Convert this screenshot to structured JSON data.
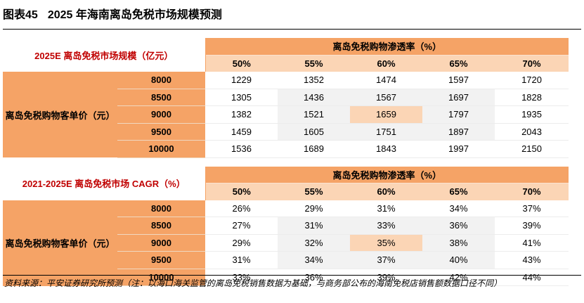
{
  "title": {
    "fig": "图表45",
    "text": "2025 年海南离岛免税市场规模预测"
  },
  "section1": {
    "label": "2025E 离岛免税市场规模（亿元）",
    "header": "离岛免税购物渗透率（%）",
    "cols": [
      "50%",
      "55%",
      "60%",
      "65%",
      "70%"
    ],
    "row_label": "离岛免税购物客单价（元）",
    "rows": [
      {
        "price": "8000",
        "values": [
          "1229",
          "1352",
          "1474",
          "1597",
          "1720"
        ]
      },
      {
        "price": "8500",
        "values": [
          "1305",
          "1436",
          "1567",
          "1697",
          "1828"
        ]
      },
      {
        "price": "9000",
        "values": [
          "1382",
          "1521",
          "1659",
          "1797",
          "1935"
        ]
      },
      {
        "price": "9500",
        "values": [
          "1459",
          "1605",
          "1751",
          "1897",
          "2043"
        ]
      },
      {
        "price": "10000",
        "values": [
          "1536",
          "1689",
          "1843",
          "1997",
          "2150"
        ]
      }
    ]
  },
  "section2": {
    "label": "2021-2025E 离岛免税市场 CAGR（%）",
    "header": "离岛免税购物渗透率（%）",
    "cols": [
      "50%",
      "55%",
      "60%",
      "65%",
      "70%"
    ],
    "row_label": "离岛免税购物客单价（元）",
    "rows": [
      {
        "price": "8000",
        "values": [
          "26%",
          "29%",
          "31%",
          "34%",
          "37%"
        ]
      },
      {
        "price": "8500",
        "values": [
          "27%",
          "31%",
          "33%",
          "36%",
          "39%"
        ]
      },
      {
        "price": "9000",
        "values": [
          "29%",
          "32%",
          "35%",
          "38%",
          "41%"
        ]
      },
      {
        "price": "9500",
        "values": [
          "31%",
          "34%",
          "37%",
          "40%",
          "43%"
        ]
      },
      {
        "price": "10000",
        "values": [
          "33%",
          "36%",
          "39%",
          "42%",
          "44%"
        ]
      }
    ]
  },
  "footer": "资料来源：平安证券研究所预测（注：以海口海关监管的离岛免税销售数据为基础，与商务部公布的海南免税店销售额数据口径不同）",
  "colors": {
    "accent": "#f5a366",
    "light": "#fbd5b5",
    "red": "#c00000"
  }
}
